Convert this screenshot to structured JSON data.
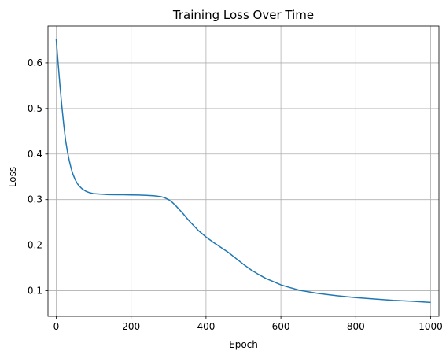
{
  "chart_data": {
    "type": "line",
    "title": "Training Loss Over Time",
    "xlabel": "Epoch",
    "ylabel": "Loss",
    "xlim": [
      -22,
      1022
    ],
    "ylim": [
      0.044,
      0.681
    ],
    "xticks": [
      0,
      200,
      400,
      600,
      800,
      1000
    ],
    "yticks": [
      0.1,
      0.2,
      0.3,
      0.4,
      0.5,
      0.6
    ],
    "xtick_labels": [
      "0",
      "200",
      "400",
      "600",
      "800",
      "1000"
    ],
    "ytick_labels": [
      "0.1",
      "0.2",
      "0.3",
      "0.4",
      "0.5",
      "0.6"
    ],
    "grid": true,
    "line_color": "#1f77b4",
    "series": [
      {
        "x": [
          0,
          5,
          10,
          15,
          20,
          25,
          30,
          35,
          40,
          45,
          50,
          55,
          60,
          70,
          80,
          90,
          100,
          120,
          140,
          160,
          180,
          200,
          220,
          240,
          260,
          280,
          290,
          300,
          310,
          320,
          330,
          340,
          350,
          360,
          380,
          400,
          420,
          440,
          460,
          480,
          500,
          520,
          540,
          560,
          580,
          600,
          620,
          650,
          700,
          750,
          800,
          850,
          900,
          950,
          1000
        ],
        "y": [
          0.652,
          0.6,
          0.55,
          0.505,
          0.465,
          0.43,
          0.405,
          0.385,
          0.368,
          0.355,
          0.345,
          0.337,
          0.331,
          0.323,
          0.318,
          0.315,
          0.313,
          0.312,
          0.311,
          0.3108,
          0.3106,
          0.3103,
          0.31,
          0.3095,
          0.3085,
          0.3065,
          0.304,
          0.3,
          0.294,
          0.286,
          0.277,
          0.268,
          0.258,
          0.249,
          0.232,
          0.218,
          0.206,
          0.195,
          0.184,
          0.171,
          0.158,
          0.146,
          0.136,
          0.127,
          0.12,
          0.113,
          0.108,
          0.101,
          0.094,
          0.089,
          0.085,
          0.082,
          0.079,
          0.077,
          0.0745
        ]
      }
    ]
  }
}
